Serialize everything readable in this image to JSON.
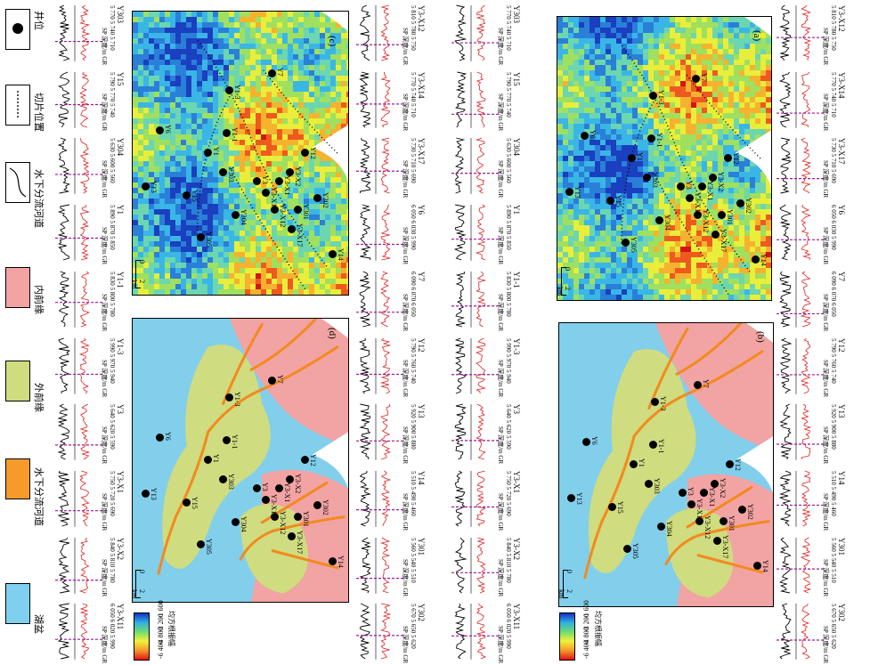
{
  "legend": {
    "items": [
      {
        "label": "井位",
        "type": "dot"
      },
      {
        "label": "切片位置",
        "type": "dash"
      },
      {
        "label": "水下分流河道",
        "type": "curve"
      },
      {
        "label": "内前缘",
        "type": "fill",
        "color": "#f2a3a3"
      },
      {
        "label": "外前缘",
        "type": "fill",
        "color": "#cfdc7f"
      },
      {
        "label": "水下分流河道",
        "type": "fill",
        "color": "#f59a2b"
      },
      {
        "label": "湖盆",
        "type": "fill",
        "color": "#7fd0ee"
      }
    ]
  },
  "log_axis": {
    "sp": "SP",
    "gr": "GR",
    "depth": "深度/m"
  },
  "log_columns": [
    {
      "wells": [
        {
          "name": "Y303",
          "ticks": [
            "5 770",
            "5 740",
            "5 710"
          ]
        },
        {
          "name": "Y15",
          "ticks": [
            "5 790",
            "5 770",
            "5 740"
          ]
        },
        {
          "name": "Y304",
          "ticks": [
            "5 630",
            "5 600",
            "5 560"
          ]
        },
        {
          "name": "Y1",
          "ticks": [
            "5 890",
            "5 870",
            "5 850"
          ]
        },
        {
          "name": "Y1-1",
          "ticks": [
            "5 830",
            "5 800",
            "5 780"
          ]
        },
        {
          "name": "Y1-3",
          "ticks": [
            "5 990",
            "5 970",
            "5 940"
          ]
        },
        {
          "name": "Y3",
          "ticks": [
            "5 640",
            "5 620",
            "5 590"
          ]
        },
        {
          "name": "Y3-X1",
          "ticks": [
            "5 750",
            "5 720",
            "5 690"
          ]
        },
        {
          "name": "Y3-X2",
          "ticks": [
            "5 840",
            "5 810",
            "5 780"
          ]
        },
        {
          "name": "Y3-X11",
          "ticks": [
            "6 050",
            "6 020",
            "5 990"
          ]
        }
      ]
    },
    {
      "wells": [
        {
          "name": "Y3-X12",
          "ticks": [
            "5 810",
            "5 780",
            "5 750"
          ]
        },
        {
          "name": "Y3-X14",
          "ticks": [
            "5 770",
            "5 740",
            "5 710"
          ]
        },
        {
          "name": "Y3-X17",
          "ticks": [
            "5 730",
            "5 710",
            "5 690"
          ]
        },
        {
          "name": "Y6",
          "ticks": [
            "6 050",
            "6 030",
            "5 990"
          ]
        },
        {
          "name": "Y7",
          "ticks": [
            "6 090",
            "6 070",
            "6 050"
          ]
        },
        {
          "name": "Y12",
          "ticks": [
            "5 790",
            "5 760",
            "5 740"
          ]
        },
        {
          "name": "Y13",
          "ticks": [
            "5 920",
            "5 900",
            "5 880"
          ]
        },
        {
          "name": "Y14",
          "ticks": [
            "5 510",
            "5 490",
            "5 460"
          ]
        },
        {
          "name": "Y301",
          "ticks": [
            "5 560",
            "5 540",
            "5 510"
          ]
        },
        {
          "name": "Y302",
          "ticks": [
            "5 670",
            "5 650",
            "5 620"
          ]
        }
      ]
    }
  ],
  "panels": {
    "a": "(a)",
    "b": "(b)",
    "c": "(c)",
    "d": "(d)"
  },
  "scale_bar": {
    "zero": "0",
    "value": "2 km"
  },
  "colorbar": {
    "title": "均方根振幅",
    "ticks": [
      "-6 400",
      "-4 800",
      "-3 200",
      "-1 600"
    ]
  },
  "map_wells": [
    "Y13",
    "Y6",
    "Y15",
    "Y305",
    "Y1",
    "Y303",
    "Y1-1",
    "Y304",
    "Y1-3",
    "Y3",
    "Y3-X14",
    "Y3-X12",
    "Y3-X1",
    "Y3-X2",
    "Y301",
    "Y3-X17",
    "Y12",
    "Y302",
    "Y7",
    "Y14"
  ]
}
